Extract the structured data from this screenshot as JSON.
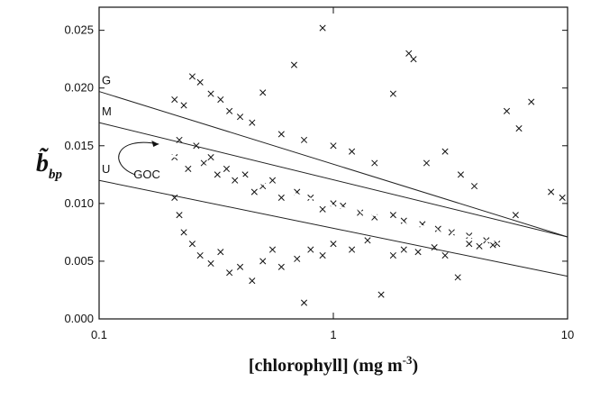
{
  "chart_data": {
    "type": "scatter",
    "log_x": true,
    "ylabel": "b̃",
    "ylabel_sub": "bp",
    "xlabel": "[chlorophyll] (mg m",
    "xlabel_sup": "-3",
    "xlabel_end": ")",
    "xlim": [
      0.1,
      10
    ],
    "xticks": [
      0.1,
      1,
      10
    ],
    "ylim": [
      0,
      0.027
    ],
    "yticks": [
      {
        "value": 0,
        "label": "0.000"
      },
      0.005,
      {
        "value": 0.01,
        "label": "0.010"
      },
      0.015,
      {
        "value": 0.02,
        "label": "0.020"
      },
      0.025
    ],
    "series": [
      {
        "mode": "points",
        "color": "#111111",
        "x": [
          0.21,
          0.23,
          0.25,
          0.27,
          0.3,
          0.33,
          0.36,
          0.4,
          0.45,
          0.5,
          0.6,
          0.68,
          0.75,
          0.9,
          1.0,
          1.2,
          1.5,
          1.8,
          2.1,
          2.2,
          2.5,
          3.0,
          3.5,
          4.0,
          5.5,
          6.2,
          7.0,
          8.5,
          9.5,
          0.21,
          0.22,
          0.24,
          0.26,
          0.28,
          0.3,
          0.32,
          0.35,
          0.38,
          0.42,
          0.46,
          0.5,
          0.55,
          0.6,
          0.7,
          0.8,
          0.9,
          1.0,
          1.1,
          1.3,
          1.5,
          1.8,
          2.0,
          2.4,
          2.8,
          3.2,
          3.8,
          4.5,
          5.0,
          6.0,
          0.21,
          0.22,
          0.23,
          0.25,
          0.27,
          0.3,
          0.33,
          0.36,
          0.4,
          0.45,
          0.5,
          0.55,
          0.6,
          0.7,
          0.75,
          0.8,
          0.9,
          1.0,
          1.2,
          1.4,
          1.6,
          1.8,
          2.0,
          2.3,
          2.7,
          3.0,
          3.4,
          3.8,
          4.2,
          4.8
        ],
        "values": [
          0.019,
          0.0185,
          0.021,
          0.0205,
          0.0195,
          0.019,
          0.018,
          0.0175,
          0.017,
          0.0196,
          0.016,
          0.022,
          0.0155,
          0.0252,
          0.015,
          0.0145,
          0.0135,
          0.0195,
          0.023,
          0.0225,
          0.0135,
          0.0145,
          0.0125,
          0.0115,
          0.018,
          0.0165,
          0.0188,
          0.011,
          0.0105,
          0.014,
          0.0155,
          0.013,
          0.015,
          0.0135,
          0.014,
          0.0125,
          0.013,
          0.012,
          0.0125,
          0.011,
          0.0115,
          0.012,
          0.0105,
          0.011,
          0.0105,
          0.0095,
          0.01,
          0.0098,
          0.0092,
          0.0088,
          0.009,
          0.0085,
          0.0082,
          0.0078,
          0.0075,
          0.0072,
          0.0068,
          0.0065,
          0.009,
          0.0105,
          0.009,
          0.0075,
          0.0065,
          0.0055,
          0.0048,
          0.0058,
          0.004,
          0.0045,
          0.0033,
          0.005,
          0.006,
          0.0045,
          0.0052,
          0.0014,
          0.006,
          0.0055,
          0.0065,
          0.006,
          0.0068,
          0.0021,
          0.0055,
          0.006,
          0.0058,
          0.0062,
          0.0055,
          0.0036,
          0.0065,
          0.0063,
          0.0064
        ]
      },
      {
        "name": "G",
        "mode": "line",
        "color": "#222222",
        "x": [
          0.1,
          10
        ],
        "values": [
          0.0197,
          0.0071
        ]
      },
      {
        "name": "M",
        "mode": "line",
        "color": "#222222",
        "x": [
          0.1,
          10
        ],
        "values": [
          0.017,
          0.0071
        ]
      },
      {
        "name": "U",
        "mode": "line",
        "color": "#222222",
        "x": [
          0.1,
          10
        ],
        "values": [
          0.012,
          0.0037
        ]
      },
      {
        "name": "GOC",
        "mode": "line",
        "color": "#ffffff",
        "x": [
          0.2,
          1,
          6
        ],
        "values": [
          0.0142,
          0.0098,
          0.0062
        ]
      }
    ]
  }
}
